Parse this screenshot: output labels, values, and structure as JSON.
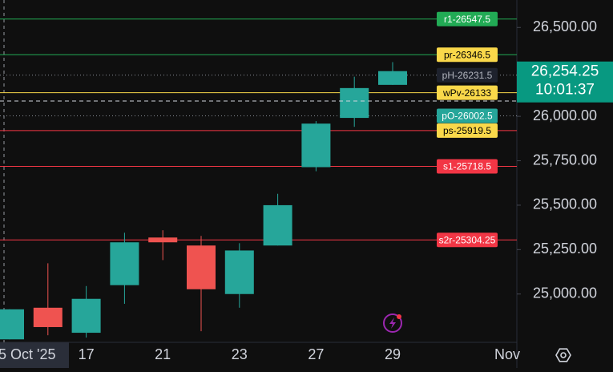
{
  "chart_data": {
    "type": "candlestick",
    "categories": [
      null,
      null,
      "17",
      null,
      "21",
      null,
      "23",
      null,
      "27",
      null,
      "29"
    ],
    "x_edge_labels": {
      "left": "5 Oct '25",
      "right": "Nov"
    },
    "series": [
      {
        "open": [
          24745,
          24923,
          24782,
          25050,
          25318,
          25273,
          25000,
          25273,
          25714,
          25991,
          26177
        ],
        "high": [
          24914,
          25173,
          25045,
          25345,
          25359,
          25327,
          25286,
          25564,
          25973,
          26223,
          26305
        ],
        "low": [
          24745,
          24768,
          24755,
          24945,
          25191,
          24791,
          24923,
          25273,
          25691,
          25941,
          26177
        ],
        "close": [
          24914,
          24814,
          24973,
          25291,
          25291,
          25027,
          25245,
          25500,
          25959,
          26159,
          26254.25
        ],
        "up_color": "#26a69a",
        "down_color": "#ef5350"
      }
    ],
    "ylim": [
      24728.18,
      26654.55
    ],
    "yticks": [
      {
        "value": 25000,
        "label": "25,000.00"
      },
      {
        "value": 25250,
        "label": "25,250.00"
      },
      {
        "value": 25500,
        "label": "25,500.00"
      },
      {
        "value": 25750,
        "label": "25,750.00"
      },
      {
        "value": 26000,
        "label": "26,000.00"
      },
      {
        "value": 26500,
        "label": "26,500.00"
      }
    ],
    "levels": [
      {
        "label": "pH-26231.5",
        "value": 26231.5,
        "color": "#8a8f98",
        "label_color": "#1e222d",
        "text_color": "#b2b5be",
        "dotted": true
      },
      {
        "label": "pO-26002.5",
        "value": 26002.5,
        "color": "#8a8f98",
        "label_color": "#26a69a",
        "text_color": "#ffffff",
        "dotted": true
      },
      {
        "label": "r1-26547.5",
        "value": 26547.5,
        "color": "#22ab55",
        "label_color": "#22ab55",
        "text_color": "#ffffff",
        "dotted": false
      },
      {
        "label": "pr-26346.5",
        "value": 26346.5,
        "color": "#22ab55",
        "label_color": "#f9d84a",
        "text_color": "#000000",
        "dotted": false
      },
      {
        "label": "wPv-26133",
        "value": 26133,
        "color": "#f9d84a",
        "label_color": "#f9d84a",
        "text_color": "#000000",
        "dotted": false
      },
      {
        "label": "ps-25919.5",
        "value": 25919.5,
        "color": "#f23645",
        "label_color": "#f9d84a",
        "text_color": "#000000",
        "dotted": false
      },
      {
        "label": "s1-25718.5",
        "value": 25718.5,
        "color": "#f23645",
        "label_color": "#f23645",
        "text_color": "#ffffff",
        "dotted": false
      },
      {
        "label": "s2r-25304.25",
        "value": 25304.25,
        "color": "#f23645",
        "label_color": "#f23645",
        "text_color": "#ffffff",
        "dotted": false
      }
    ],
    "price_label": {
      "value": 26254.25,
      "text": "26,254.25",
      "timer": "10:01:37",
      "color": "#089981"
    }
  }
}
